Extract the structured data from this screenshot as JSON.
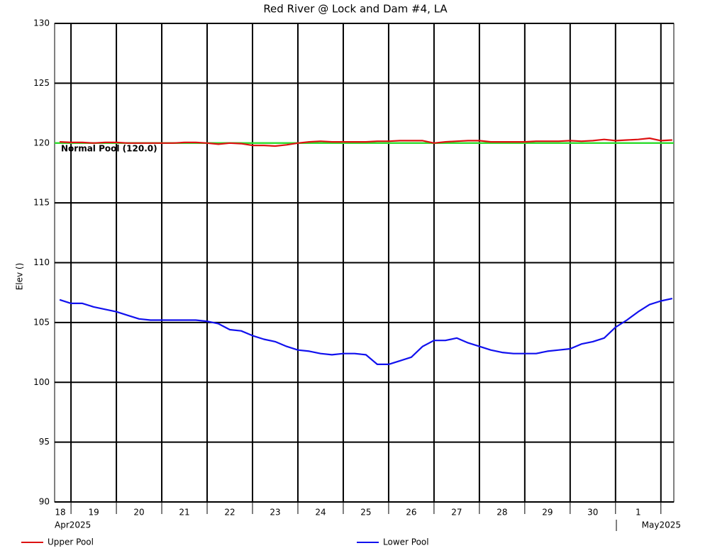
{
  "chart_data": {
    "type": "line",
    "title": "Red River @ Lock and Dam #4, LA",
    "y_label": "Elev ()",
    "x": [
      "2025-04-18 18:00",
      "2025-04-19 00:00",
      "2025-04-19 06:00",
      "2025-04-19 12:00",
      "2025-04-19 18:00",
      "2025-04-20 00:00",
      "2025-04-20 06:00",
      "2025-04-20 12:00",
      "2025-04-20 18:00",
      "2025-04-21 00:00",
      "2025-04-21 06:00",
      "2025-04-21 12:00",
      "2025-04-21 18:00",
      "2025-04-22 00:00",
      "2025-04-22 06:00",
      "2025-04-22 12:00",
      "2025-04-22 18:00",
      "2025-04-23 00:00",
      "2025-04-23 06:00",
      "2025-04-23 12:00",
      "2025-04-23 18:00",
      "2025-04-24 00:00",
      "2025-04-24 06:00",
      "2025-04-24 12:00",
      "2025-04-24 18:00",
      "2025-04-25 00:00",
      "2025-04-25 06:00",
      "2025-04-25 12:00",
      "2025-04-25 18:00",
      "2025-04-26 00:00",
      "2025-04-26 06:00",
      "2025-04-26 12:00",
      "2025-04-26 18:00",
      "2025-04-27 00:00",
      "2025-04-27 06:00",
      "2025-04-27 12:00",
      "2025-04-27 18:00",
      "2025-04-28 00:00",
      "2025-04-28 06:00",
      "2025-04-28 12:00",
      "2025-04-28 18:00",
      "2025-04-29 00:00",
      "2025-04-29 06:00",
      "2025-04-29 12:00",
      "2025-04-29 18:00",
      "2025-04-30 00:00",
      "2025-04-30 06:00",
      "2025-04-30 12:00",
      "2025-04-30 18:00",
      "2025-05-01 00:00",
      "2025-05-01 06:00",
      "2025-05-01 12:00",
      "2025-05-01 18:00",
      "2025-05-02 00:00",
      "2025-05-02 06:00"
    ],
    "series": [
      {
        "name": "Upper Pool",
        "color": "#dd1111",
        "values": [
          120.1,
          120.05,
          120.05,
          120.0,
          120.05,
          120.05,
          120.0,
          120.0,
          120.0,
          120.0,
          120.0,
          120.05,
          120.05,
          120.0,
          119.9,
          120.0,
          119.95,
          119.8,
          119.8,
          119.75,
          119.85,
          120.0,
          120.1,
          120.15,
          120.1,
          120.1,
          120.1,
          120.1,
          120.15,
          120.15,
          120.2,
          120.2,
          120.2,
          120.0,
          120.1,
          120.15,
          120.2,
          120.2,
          120.1,
          120.1,
          120.1,
          120.1,
          120.15,
          120.15,
          120.15,
          120.2,
          120.15,
          120.2,
          120.3,
          120.2,
          120.25,
          120.3,
          120.4,
          120.2,
          120.25
        ]
      },
      {
        "name": "Lower Pool",
        "color": "#1111ee",
        "values": [
          106.9,
          106.6,
          106.6,
          106.3,
          106.1,
          105.9,
          105.6,
          105.3,
          105.2,
          105.2,
          105.2,
          105.2,
          105.2,
          105.1,
          104.9,
          104.4,
          104.3,
          103.9,
          103.6,
          103.4,
          103.0,
          102.7,
          102.6,
          102.4,
          102.3,
          102.4,
          102.4,
          102.3,
          101.5,
          101.5,
          101.8,
          102.1,
          103.0,
          103.5,
          103.5,
          103.7,
          103.3,
          103.0,
          102.7,
          102.5,
          102.4,
          102.4,
          102.4,
          102.6,
          102.7,
          102.8,
          103.2,
          103.4,
          103.7,
          104.6,
          105.2,
          105.9,
          106.5,
          106.8,
          107.0
        ]
      }
    ],
    "xlim": [
      "2025-04-18 15:20",
      "2025-05-02 06:50"
    ],
    "xticks": [
      {
        "value": "2025-04-18 12:00",
        "label": "18"
      },
      {
        "value": "2025-04-19 12:00",
        "label": "19"
      },
      {
        "value": "2025-04-20 12:00",
        "label": "20"
      },
      {
        "value": "2025-04-21 12:00",
        "label": "21"
      },
      {
        "value": "2025-04-22 12:00",
        "label": "22"
      },
      {
        "value": "2025-04-23 12:00",
        "label": "23"
      },
      {
        "value": "2025-04-24 12:00",
        "label": "24"
      },
      {
        "value": "2025-04-25 12:00",
        "label": "25"
      },
      {
        "value": "2025-04-26 12:00",
        "label": "26"
      },
      {
        "value": "2025-04-27 12:00",
        "label": "27"
      },
      {
        "value": "2025-04-28 12:00",
        "label": "28"
      },
      {
        "value": "2025-04-29 12:00",
        "label": "29"
      },
      {
        "value": "2025-04-30 12:00",
        "label": "30"
      },
      {
        "value": "2025-05-01 12:00",
        "label": "1"
      }
    ],
    "xgrid": [
      "2025-04-19 00:00",
      "2025-04-20 00:00",
      "2025-04-21 00:00",
      "2025-04-22 00:00",
      "2025-04-23 00:00",
      "2025-04-24 00:00",
      "2025-04-25 00:00",
      "2025-04-26 00:00",
      "2025-04-27 00:00",
      "2025-04-28 00:00",
      "2025-04-29 00:00",
      "2025-04-30 00:00",
      "2025-05-01 00:00",
      "2025-05-02 00:00"
    ],
    "x_month_labels": [
      "Apr2025",
      "May2025"
    ],
    "ylim": [
      90,
      130
    ],
    "yticks": [
      90,
      95,
      100,
      105,
      110,
      115,
      120,
      125,
      130
    ],
    "grid": true,
    "reference_line": {
      "value": 120,
      "label": "Normal Pool (120.0)",
      "color": "#33dd33"
    }
  }
}
